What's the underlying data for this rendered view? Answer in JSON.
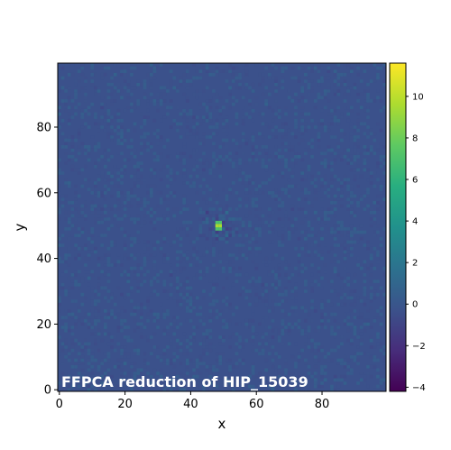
{
  "chart_data": {
    "type": "heatmap",
    "title": "",
    "xlabel": "x",
    "ylabel": "y",
    "xlim": [
      0,
      99
    ],
    "ylim": [
      0,
      99
    ],
    "x_ticks": [
      0,
      20,
      40,
      60,
      80
    ],
    "y_ticks": [
      0,
      20,
      40,
      60,
      80
    ],
    "grid_size": [
      100,
      100
    ],
    "colormap": "viridis",
    "colorbar": {
      "min": -4.2,
      "max": 11.6,
      "ticks": [
        -4,
        -2,
        0,
        2,
        4,
        6,
        8,
        10
      ],
      "tick_labels": [
        "−4",
        "−2",
        "0",
        "2",
        "4",
        "6",
        "8",
        "10"
      ]
    },
    "background_level": 0,
    "source": {
      "x": 48.5,
      "y": 50,
      "peak": 11.6
    },
    "annotation": "FFPCA reduction of HIP_15039",
    "annotation_position": "bottom-left"
  }
}
